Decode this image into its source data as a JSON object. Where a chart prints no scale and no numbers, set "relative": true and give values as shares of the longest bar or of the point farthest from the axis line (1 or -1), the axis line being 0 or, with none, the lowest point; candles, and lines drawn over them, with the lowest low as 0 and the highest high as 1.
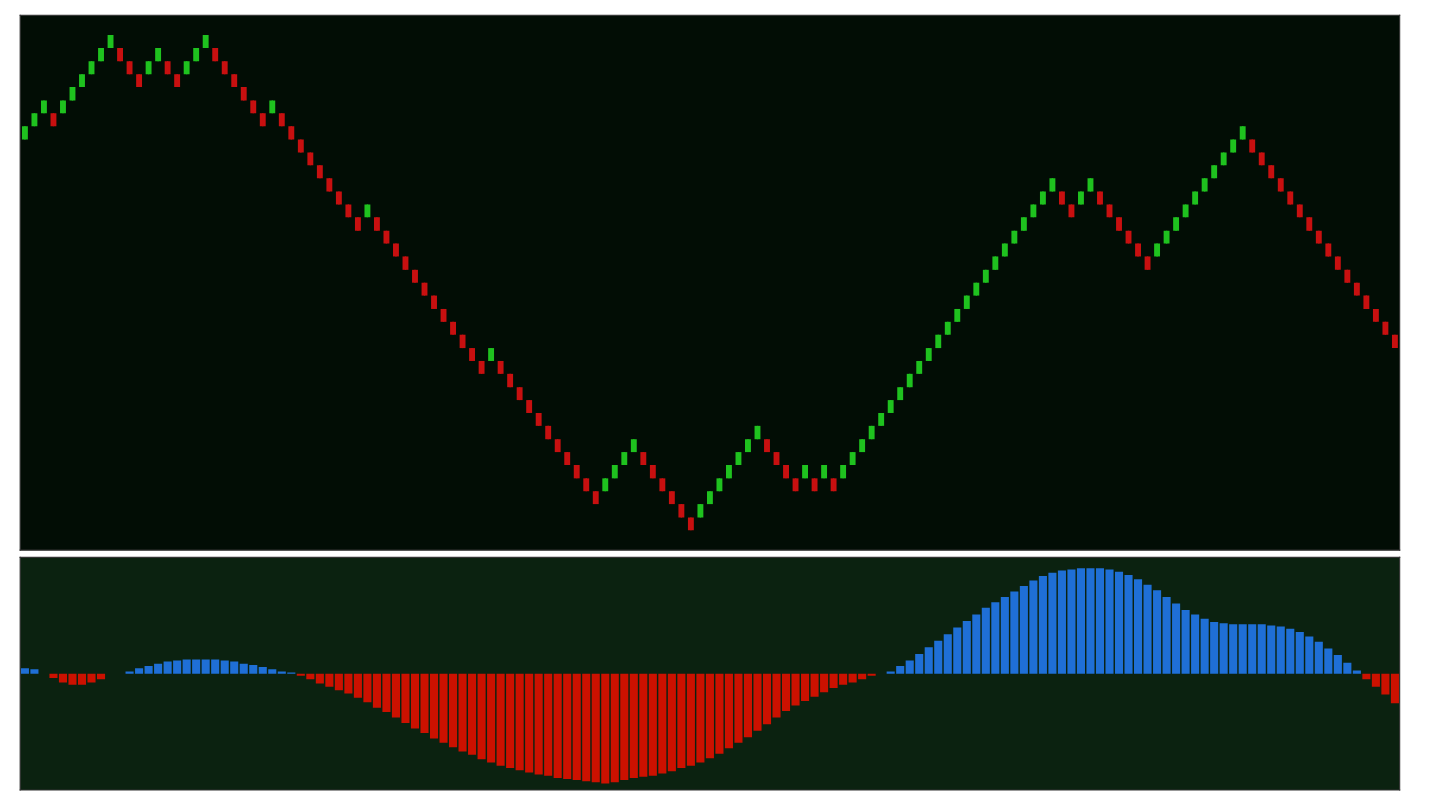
{
  "chart_data": [
    {
      "type": "candlestick",
      "relative": true,
      "categories": [
        null,
        null,
        null,
        null,
        null,
        null,
        null,
        null,
        null,
        null,
        null,
        null,
        null,
        null,
        null,
        null,
        null,
        null,
        null,
        null,
        null,
        null,
        null,
        null,
        null,
        null,
        null,
        null,
        null,
        null,
        null,
        null,
        null,
        null,
        null,
        null,
        null,
        null,
        null,
        null,
        null,
        null,
        null,
        null,
        null,
        null,
        null,
        null,
        null,
        null,
        null,
        null,
        null,
        null,
        null,
        null,
        null,
        null,
        null,
        null,
        null,
        null,
        null,
        null,
        null,
        null,
        null,
        null,
        null,
        null,
        null,
        null,
        null,
        null,
        null,
        null,
        null,
        null,
        null,
        null,
        null,
        null,
        null,
        null,
        null,
        null,
        null,
        null,
        null,
        null,
        null,
        null,
        null,
        null,
        null,
        null,
        null,
        null,
        null,
        null,
        null,
        null,
        null,
        null,
        null,
        null,
        null,
        null,
        null,
        null,
        null,
        null,
        null,
        null,
        null,
        null,
        null,
        null,
        null,
        null,
        null,
        null,
        null,
        null,
        null,
        null,
        null,
        null,
        null,
        null,
        null,
        null,
        null,
        null,
        null,
        null,
        null,
        null,
        null,
        null,
        null,
        null,
        null,
        null,
        null
      ],
      "ohlc": [
        [
          0.789,
          0.816,
          0.789,
          0.816
        ],
        [
          0.816,
          0.842,
          0.816,
          0.842
        ],
        [
          0.842,
          0.868,
          0.842,
          0.868
        ],
        [
          0.842,
          0.842,
          0.816,
          0.816
        ],
        [
          0.842,
          0.868,
          0.842,
          0.868
        ],
        [
          0.868,
          0.895,
          0.868,
          0.895
        ],
        [
          0.895,
          0.921,
          0.895,
          0.921
        ],
        [
          0.921,
          0.947,
          0.921,
          0.947
        ],
        [
          0.947,
          0.974,
          0.947,
          0.974
        ],
        [
          0.974,
          1,
          0.974,
          1
        ],
        [
          0.974,
          0.974,
          0.947,
          0.947
        ],
        [
          0.947,
          0.947,
          0.921,
          0.921
        ],
        [
          0.921,
          0.921,
          0.895,
          0.895
        ],
        [
          0.921,
          0.947,
          0.921,
          0.947
        ],
        [
          0.947,
          0.974,
          0.947,
          0.974
        ],
        [
          0.947,
          0.947,
          0.921,
          0.921
        ],
        [
          0.921,
          0.921,
          0.895,
          0.895
        ],
        [
          0.921,
          0.947,
          0.921,
          0.947
        ],
        [
          0.947,
          0.974,
          0.947,
          0.974
        ],
        [
          0.974,
          1,
          0.974,
          1
        ],
        [
          0.974,
          0.974,
          0.947,
          0.947
        ],
        [
          0.947,
          0.947,
          0.921,
          0.921
        ],
        [
          0.921,
          0.921,
          0.895,
          0.895
        ],
        [
          0.895,
          0.895,
          0.868,
          0.868
        ],
        [
          0.868,
          0.868,
          0.842,
          0.842
        ],
        [
          0.842,
          0.842,
          0.816,
          0.816
        ],
        [
          0.842,
          0.868,
          0.842,
          0.868
        ],
        [
          0.842,
          0.842,
          0.816,
          0.816
        ],
        [
          0.816,
          0.816,
          0.789,
          0.789
        ],
        [
          0.789,
          0.789,
          0.763,
          0.763
        ],
        [
          0.763,
          0.763,
          0.737,
          0.737
        ],
        [
          0.737,
          0.737,
          0.711,
          0.711
        ],
        [
          0.711,
          0.711,
          0.684,
          0.684
        ],
        [
          0.684,
          0.684,
          0.658,
          0.658
        ],
        [
          0.658,
          0.658,
          0.632,
          0.632
        ],
        [
          0.632,
          0.632,
          0.605,
          0.605
        ],
        [
          0.632,
          0.658,
          0.632,
          0.658
        ],
        [
          0.632,
          0.632,
          0.605,
          0.605
        ],
        [
          0.605,
          0.605,
          0.579,
          0.579
        ],
        [
          0.579,
          0.579,
          0.553,
          0.553
        ],
        [
          0.553,
          0.553,
          0.526,
          0.526
        ],
        [
          0.526,
          0.526,
          0.5,
          0.5
        ],
        [
          0.5,
          0.5,
          0.474,
          0.474
        ],
        [
          0.474,
          0.474,
          0.447,
          0.447
        ],
        [
          0.447,
          0.447,
          0.421,
          0.421
        ],
        [
          0.421,
          0.421,
          0.395,
          0.395
        ],
        [
          0.395,
          0.395,
          0.368,
          0.368
        ],
        [
          0.368,
          0.368,
          0.342,
          0.342
        ],
        [
          0.342,
          0.342,
          0.316,
          0.316
        ],
        [
          0.342,
          0.368,
          0.342,
          0.368
        ],
        [
          0.342,
          0.342,
          0.316,
          0.316
        ],
        [
          0.316,
          0.316,
          0.289,
          0.289
        ],
        [
          0.289,
          0.289,
          0.263,
          0.263
        ],
        [
          0.263,
          0.263,
          0.237,
          0.237
        ],
        [
          0.237,
          0.237,
          0.211,
          0.211
        ],
        [
          0.211,
          0.211,
          0.184,
          0.184
        ],
        [
          0.184,
          0.184,
          0.158,
          0.158
        ],
        [
          0.158,
          0.158,
          0.132,
          0.132
        ],
        [
          0.132,
          0.132,
          0.105,
          0.105
        ],
        [
          0.105,
          0.105,
          0.079,
          0.079
        ],
        [
          0.079,
          0.079,
          0.053,
          0.053
        ],
        [
          0.079,
          0.105,
          0.079,
          0.105
        ],
        [
          0.105,
          0.132,
          0.105,
          0.132
        ],
        [
          0.132,
          0.158,
          0.132,
          0.158
        ],
        [
          0.158,
          0.184,
          0.158,
          0.184
        ],
        [
          0.158,
          0.158,
          0.132,
          0.132
        ],
        [
          0.132,
          0.132,
          0.105,
          0.105
        ],
        [
          0.105,
          0.105,
          0.079,
          0.079
        ],
        [
          0.079,
          0.079,
          0.053,
          0.053
        ],
        [
          0.053,
          0.053,
          0.026,
          0.026
        ],
        [
          0.026,
          0.026,
          0,
          0
        ],
        [
          0.026,
          0.053,
          0.026,
          0.053
        ],
        [
          0.053,
          0.079,
          0.053,
          0.079
        ],
        [
          0.079,
          0.105,
          0.079,
          0.105
        ],
        [
          0.105,
          0.132,
          0.105,
          0.132
        ],
        [
          0.132,
          0.158,
          0.132,
          0.158
        ],
        [
          0.158,
          0.184,
          0.158,
          0.184
        ],
        [
          0.184,
          0.211,
          0.184,
          0.211
        ],
        [
          0.184,
          0.184,
          0.158,
          0.158
        ],
        [
          0.158,
          0.158,
          0.132,
          0.132
        ],
        [
          0.132,
          0.132,
          0.105,
          0.105
        ],
        [
          0.105,
          0.105,
          0.079,
          0.079
        ],
        [
          0.105,
          0.132,
          0.105,
          0.132
        ],
        [
          0.105,
          0.105,
          0.079,
          0.079
        ],
        [
          0.105,
          0.132,
          0.105,
          0.132
        ],
        [
          0.105,
          0.105,
          0.079,
          0.079
        ],
        [
          0.105,
          0.132,
          0.105,
          0.132
        ],
        [
          0.132,
          0.158,
          0.132,
          0.158
        ],
        [
          0.158,
          0.184,
          0.158,
          0.184
        ],
        [
          0.184,
          0.211,
          0.184,
          0.211
        ],
        [
          0.211,
          0.237,
          0.211,
          0.237
        ],
        [
          0.237,
          0.263,
          0.237,
          0.263
        ],
        [
          0.263,
          0.289,
          0.263,
          0.289
        ],
        [
          0.289,
          0.316,
          0.289,
          0.316
        ],
        [
          0.316,
          0.342,
          0.316,
          0.342
        ],
        [
          0.342,
          0.368,
          0.342,
          0.368
        ],
        [
          0.368,
          0.395,
          0.368,
          0.395
        ],
        [
          0.395,
          0.421,
          0.395,
          0.421
        ],
        [
          0.421,
          0.447,
          0.421,
          0.447
        ],
        [
          0.447,
          0.474,
          0.447,
          0.474
        ],
        [
          0.474,
          0.5,
          0.474,
          0.5
        ],
        [
          0.5,
          0.526,
          0.5,
          0.526
        ],
        [
          0.526,
          0.553,
          0.526,
          0.553
        ],
        [
          0.553,
          0.579,
          0.553,
          0.579
        ],
        [
          0.579,
          0.605,
          0.579,
          0.605
        ],
        [
          0.605,
          0.632,
          0.605,
          0.632
        ],
        [
          0.632,
          0.658,
          0.632,
          0.658
        ],
        [
          0.658,
          0.684,
          0.658,
          0.684
        ],
        [
          0.684,
          0.711,
          0.684,
          0.711
        ],
        [
          0.684,
          0.684,
          0.658,
          0.658
        ],
        [
          0.658,
          0.658,
          0.632,
          0.632
        ],
        [
          0.658,
          0.684,
          0.658,
          0.684
        ],
        [
          0.684,
          0.711,
          0.684,
          0.711
        ],
        [
          0.684,
          0.684,
          0.658,
          0.658
        ],
        [
          0.658,
          0.658,
          0.632,
          0.632
        ],
        [
          0.632,
          0.632,
          0.605,
          0.605
        ],
        [
          0.605,
          0.605,
          0.579,
          0.579
        ],
        [
          0.579,
          0.579,
          0.553,
          0.553
        ],
        [
          0.553,
          0.553,
          0.526,
          0.526
        ],
        [
          0.553,
          0.579,
          0.553,
          0.579
        ],
        [
          0.579,
          0.605,
          0.579,
          0.605
        ],
        [
          0.605,
          0.632,
          0.605,
          0.632
        ],
        [
          0.632,
          0.658,
          0.632,
          0.658
        ],
        [
          0.658,
          0.684,
          0.658,
          0.684
        ],
        [
          0.684,
          0.711,
          0.684,
          0.711
        ],
        [
          0.711,
          0.737,
          0.711,
          0.737
        ],
        [
          0.737,
          0.763,
          0.737,
          0.763
        ],
        [
          0.763,
          0.789,
          0.763,
          0.789
        ],
        [
          0.789,
          0.816,
          0.789,
          0.816
        ],
        [
          0.789,
          0.789,
          0.763,
          0.763
        ],
        [
          0.763,
          0.763,
          0.737,
          0.737
        ],
        [
          0.737,
          0.737,
          0.711,
          0.711
        ],
        [
          0.711,
          0.711,
          0.684,
          0.684
        ],
        [
          0.684,
          0.684,
          0.658,
          0.658
        ],
        [
          0.658,
          0.658,
          0.632,
          0.632
        ],
        [
          0.632,
          0.632,
          0.605,
          0.605
        ],
        [
          0.605,
          0.605,
          0.579,
          0.579
        ],
        [
          0.579,
          0.579,
          0.553,
          0.553
        ],
        [
          0.553,
          0.553,
          0.526,
          0.526
        ],
        [
          0.526,
          0.526,
          0.5,
          0.5
        ],
        [
          0.5,
          0.5,
          0.474,
          0.474
        ],
        [
          0.474,
          0.474,
          0.447,
          0.447
        ],
        [
          0.447,
          0.447,
          0.421,
          0.421
        ],
        [
          0.421,
          0.421,
          0.395,
          0.395
        ],
        [
          0.395,
          0.395,
          0.368,
          0.368
        ]
      ],
      "colors": [
        "#1fc21f",
        "#1fc21f",
        "#1fc21f",
        "#c81010",
        "#1fc21f",
        "#1fc21f",
        "#1fc21f",
        "#1fc21f",
        "#1fc21f",
        "#1fc21f",
        "#c81010",
        "#c81010",
        "#c81010",
        "#1fc21f",
        "#1fc21f",
        "#c81010",
        "#c81010",
        "#1fc21f",
        "#1fc21f",
        "#1fc21f",
        "#c81010",
        "#c81010",
        "#c81010",
        "#c81010",
        "#c81010",
        "#c81010",
        "#1fc21f",
        "#c81010",
        "#c81010",
        "#c81010",
        "#c81010",
        "#c81010",
        "#c81010",
        "#c81010",
        "#c81010",
        "#c81010",
        "#1fc21f",
        "#c81010",
        "#c81010",
        "#c81010",
        "#c81010",
        "#c81010",
        "#c81010",
        "#c81010",
        "#c81010",
        "#c81010",
        "#c81010",
        "#c81010",
        "#c81010",
        "#1fc21f",
        "#c81010",
        "#c81010",
        "#c81010",
        "#c81010",
        "#c81010",
        "#c81010",
        "#c81010",
        "#c81010",
        "#c81010",
        "#c81010",
        "#c81010",
        "#1fc21f",
        "#1fc21f",
        "#1fc21f",
        "#1fc21f",
        "#c81010",
        "#c81010",
        "#c81010",
        "#c81010",
        "#c81010",
        "#c81010",
        "#1fc21f",
        "#1fc21f",
        "#1fc21f",
        "#1fc21f",
        "#1fc21f",
        "#1fc21f",
        "#1fc21f",
        "#c81010",
        "#c81010",
        "#c81010",
        "#c81010",
        "#1fc21f",
        "#c81010",
        "#1fc21f",
        "#c81010",
        "#1fc21f",
        "#1fc21f",
        "#1fc21f",
        "#1fc21f",
        "#1fc21f",
        "#1fc21f",
        "#1fc21f",
        "#1fc21f",
        "#1fc21f",
        "#1fc21f",
        "#1fc21f",
        "#1fc21f",
        "#1fc21f",
        "#1fc21f",
        "#1fc21f",
        "#1fc21f",
        "#1fc21f",
        "#1fc21f",
        "#1fc21f",
        "#1fc21f",
        "#1fc21f",
        "#1fc21f",
        "#1fc21f",
        "#c81010",
        "#c81010",
        "#1fc21f",
        "#1fc21f",
        "#c81010",
        "#c81010",
        "#c81010",
        "#c81010",
        "#c81010",
        "#c81010",
        "#1fc21f",
        "#1fc21f",
        "#1fc21f",
        "#1fc21f",
        "#1fc21f",
        "#1fc21f",
        "#1fc21f",
        "#1fc21f",
        "#1fc21f",
        "#1fc21f",
        "#c81010",
        "#c81010",
        "#c81010",
        "#c81010",
        "#c81010",
        "#c81010",
        "#c81010",
        "#c81010",
        "#c81010",
        "#c81010",
        "#c81010",
        "#c81010",
        "#c81010",
        "#c81010",
        "#c81010",
        "#c81010"
      ]
    },
    {
      "type": "bar",
      "relative": true,
      "categories": [
        null,
        null,
        null,
        null,
        null,
        null,
        null,
        null,
        null,
        null,
        null,
        null,
        null,
        null,
        null,
        null,
        null,
        null,
        null,
        null,
        null,
        null,
        null,
        null,
        null,
        null,
        null,
        null,
        null,
        null,
        null,
        null,
        null,
        null,
        null,
        null,
        null,
        null,
        null,
        null,
        null,
        null,
        null,
        null,
        null,
        null,
        null,
        null,
        null,
        null,
        null,
        null,
        null,
        null,
        null,
        null,
        null,
        null,
        null,
        null,
        null,
        null,
        null,
        null,
        null,
        null,
        null,
        null,
        null,
        null,
        null,
        null,
        null,
        null,
        null,
        null,
        null,
        null,
        null,
        null,
        null,
        null,
        null,
        null,
        null,
        null,
        null,
        null,
        null,
        null,
        null,
        null,
        null,
        null,
        null,
        null,
        null,
        null,
        null,
        null,
        null,
        null,
        null,
        null,
        null,
        null,
        null,
        null,
        null,
        null,
        null,
        null,
        null,
        null,
        null,
        null,
        null,
        null,
        null,
        null,
        null,
        null,
        null,
        null,
        null,
        null,
        null,
        null,
        null,
        null,
        null,
        null,
        null,
        null,
        null,
        null,
        null,
        null,
        null,
        null,
        null,
        null,
        null,
        null,
        null
      ],
      "values": [
        0.05,
        0.04,
        0,
        -0.04,
        -0.08,
        -0.1,
        -0.1,
        -0.08,
        -0.05,
        0,
        0,
        0.02,
        0.05,
        0.07,
        0.09,
        0.11,
        0.12,
        0.13,
        0.13,
        0.13,
        0.13,
        0.12,
        0.11,
        0.09,
        0.08,
        0.06,
        0.04,
        0.02,
        0.01,
        -0.02,
        -0.05,
        -0.09,
        -0.12,
        -0.15,
        -0.18,
        -0.22,
        -0.26,
        -0.31,
        -0.35,
        -0.4,
        -0.45,
        -0.5,
        -0.54,
        -0.59,
        -0.63,
        -0.67,
        -0.71,
        -0.74,
        -0.78,
        -0.81,
        -0.84,
        -0.86,
        -0.88,
        -0.9,
        -0.92,
        -0.93,
        -0.95,
        -0.96,
        -0.97,
        -0.98,
        -0.99,
        -1,
        -0.99,
        -0.97,
        -0.95,
        -0.94,
        -0.93,
        -0.91,
        -0.89,
        -0.86,
        -0.84,
        -0.81,
        -0.77,
        -0.73,
        -0.68,
        -0.63,
        -0.58,
        -0.52,
        -0.46,
        -0.4,
        -0.34,
        -0.29,
        -0.25,
        -0.21,
        -0.17,
        -0.13,
        -0.1,
        -0.08,
        -0.05,
        -0.02,
        0,
        0.02,
        0.07,
        0.12,
        0.18,
        0.24,
        0.3,
        0.36,
        0.42,
        0.48,
        0.54,
        0.6,
        0.65,
        0.7,
        0.75,
        0.8,
        0.85,
        0.89,
        0.92,
        0.94,
        0.95,
        0.96,
        0.96,
        0.96,
        0.95,
        0.93,
        0.9,
        0.86,
        0.81,
        0.76,
        0.7,
        0.64,
        0.58,
        0.54,
        0.5,
        0.47,
        0.46,
        0.45,
        0.45,
        0.45,
        0.45,
        0.44,
        0.43,
        0.41,
        0.38,
        0.34,
        0.29,
        0.23,
        0.17,
        0.1,
        0.03,
        -0.05,
        -0.12,
        -0.19,
        -0.27
      ],
      "colors": [
        "#1f6fd6",
        "#1f6fd6",
        "#1f6fd6",
        "#cc1100",
        "#cc1100",
        "#cc1100",
        "#cc1100",
        "#cc1100",
        "#cc1100",
        "#1f6fd6",
        "#1f6fd6",
        "#1f6fd6",
        "#1f6fd6",
        "#1f6fd6",
        "#1f6fd6",
        "#1f6fd6",
        "#1f6fd6",
        "#1f6fd6",
        "#1f6fd6",
        "#1f6fd6",
        "#1f6fd6",
        "#1f6fd6",
        "#1f6fd6",
        "#1f6fd6",
        "#1f6fd6",
        "#1f6fd6",
        "#1f6fd6",
        "#1f6fd6",
        "#1f6fd6",
        "#cc1100",
        "#cc1100",
        "#cc1100",
        "#cc1100",
        "#cc1100",
        "#cc1100",
        "#cc1100",
        "#cc1100",
        "#cc1100",
        "#cc1100",
        "#cc1100",
        "#cc1100",
        "#cc1100",
        "#cc1100",
        "#cc1100",
        "#cc1100",
        "#cc1100",
        "#cc1100",
        "#cc1100",
        "#cc1100",
        "#cc1100",
        "#cc1100",
        "#cc1100",
        "#cc1100",
        "#cc1100",
        "#cc1100",
        "#cc1100",
        "#cc1100",
        "#cc1100",
        "#cc1100",
        "#cc1100",
        "#cc1100",
        "#cc1100",
        "#cc1100",
        "#cc1100",
        "#cc1100",
        "#cc1100",
        "#cc1100",
        "#cc1100",
        "#cc1100",
        "#cc1100",
        "#cc1100",
        "#cc1100",
        "#cc1100",
        "#cc1100",
        "#cc1100",
        "#cc1100",
        "#cc1100",
        "#cc1100",
        "#cc1100",
        "#cc1100",
        "#cc1100",
        "#cc1100",
        "#cc1100",
        "#cc1100",
        "#cc1100",
        "#cc1100",
        "#cc1100",
        "#cc1100",
        "#cc1100",
        "#cc1100",
        "#1f6fd6",
        "#1f6fd6",
        "#1f6fd6",
        "#1f6fd6",
        "#1f6fd6",
        "#1f6fd6",
        "#1f6fd6",
        "#1f6fd6",
        "#1f6fd6",
        "#1f6fd6",
        "#1f6fd6",
        "#1f6fd6",
        "#1f6fd6",
        "#1f6fd6",
        "#1f6fd6",
        "#1f6fd6",
        "#1f6fd6",
        "#1f6fd6",
        "#1f6fd6",
        "#1f6fd6",
        "#1f6fd6",
        "#1f6fd6",
        "#1f6fd6",
        "#1f6fd6",
        "#1f6fd6",
        "#1f6fd6",
        "#1f6fd6",
        "#1f6fd6",
        "#1f6fd6",
        "#1f6fd6",
        "#1f6fd6",
        "#1f6fd6",
        "#1f6fd6",
        "#1f6fd6",
        "#1f6fd6",
        "#1f6fd6",
        "#1f6fd6",
        "#1f6fd6",
        "#1f6fd6",
        "#1f6fd6",
        "#1f6fd6",
        "#1f6fd6",
        "#1f6fd6",
        "#1f6fd6",
        "#1f6fd6",
        "#1f6fd6",
        "#1f6fd6",
        "#1f6fd6",
        "#1f6fd6",
        "#1f6fd6",
        "#1f6fd6",
        "#cc1100",
        "#cc1100",
        "#cc1100",
        "#cc1100"
      ]
    }
  ]
}
